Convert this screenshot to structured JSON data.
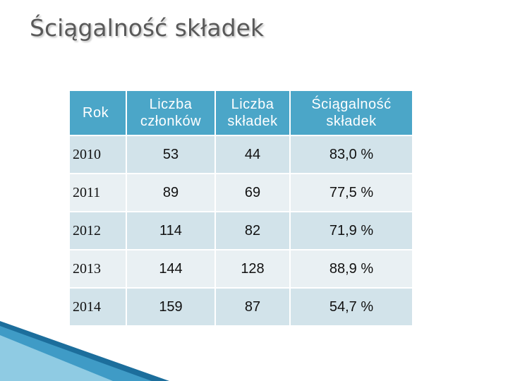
{
  "header": {
    "title": "Ściągalność składek"
  },
  "table": {
    "columns": [
      "Rok",
      "Liczba członków",
      "Liczba składek",
      "Ściągalność składek"
    ],
    "rows": [
      [
        "2010",
        "53",
        "44",
        "83,0 %"
      ],
      [
        "2011",
        "89",
        "69",
        "77,5 %"
      ],
      [
        "2012",
        "114",
        "82",
        "71,9 %"
      ],
      [
        "2013",
        "144",
        "128",
        "88,9 %"
      ],
      [
        "2014",
        "159",
        "87",
        "54,7 %"
      ]
    ]
  }
}
